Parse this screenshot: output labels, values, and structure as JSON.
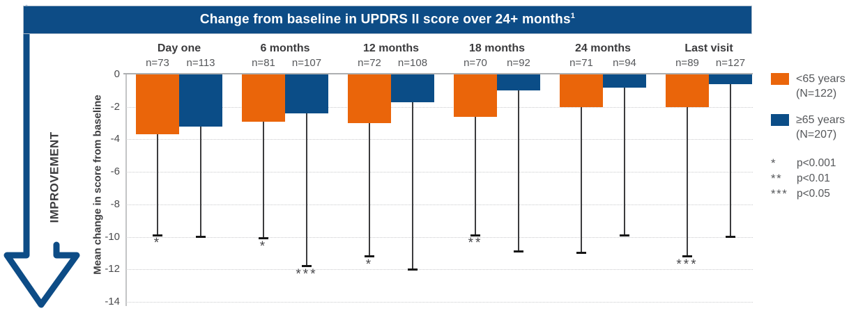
{
  "header": {
    "title": "Change from baseline in UPDRS II score over 24+ months",
    "footnote_marker": "1"
  },
  "chart_data": {
    "type": "bar",
    "title": "Change from baseline in UPDRS II score over 24+ months",
    "ylabel": "Mean change in score from baseline",
    "improvement_label": "IMPROVEMENT",
    "ylim": [
      0,
      -14
    ],
    "yticks": [
      0,
      -2,
      -4,
      -6,
      -8,
      -10,
      -12,
      -14
    ],
    "grid": "dotted horizontal",
    "legend_position": "right",
    "categories": [
      "Day one",
      "6 months",
      "12 months",
      "18 months",
      "24 months",
      "Last visit"
    ],
    "series": [
      {
        "name": "<65 years (N=122)",
        "color": "#ea650a",
        "n": [
          "n=73",
          "n=81",
          "n=72",
          "n=70",
          "n=71",
          "n=89"
        ],
        "values": [
          -3.7,
          -2.9,
          -3.0,
          -2.6,
          -2.0,
          -2.0
        ],
        "error_low": [
          -9.9,
          -10.1,
          -11.2,
          -9.9,
          -11.0,
          -11.2
        ],
        "sig": [
          "*",
          "*",
          "*",
          "**",
          null,
          "***"
        ]
      },
      {
        "name": "≥65 years (N=207)",
        "color": "#0b4d87",
        "n": [
          "n=113",
          "n=107",
          "n=108",
          "n=92",
          "n=94",
          "n=127"
        ],
        "values": [
          -3.2,
          -2.4,
          -1.7,
          -1.0,
          -0.8,
          -0.6
        ],
        "error_low": [
          -10.0,
          -11.8,
          -12.0,
          -10.9,
          -9.9,
          -10.0
        ],
        "sig": [
          null,
          "***",
          null,
          null,
          null,
          null
        ]
      }
    ],
    "sig_key": [
      {
        "symbol": "*",
        "label": "p<0.001"
      },
      {
        "symbol": "**",
        "label": "p<0.01"
      },
      {
        "symbol": "***",
        "label": "p<0.05"
      }
    ]
  },
  "legend": {
    "items": [
      {
        "line1": "<65 years",
        "line2": "(N=122)"
      },
      {
        "line1": "≥65 years",
        "line2": "(N=207)"
      }
    ]
  },
  "colors": {
    "brand_blue": "#0d4c86",
    "orange": "#ea650a",
    "bar_blue": "#0b4d87"
  }
}
